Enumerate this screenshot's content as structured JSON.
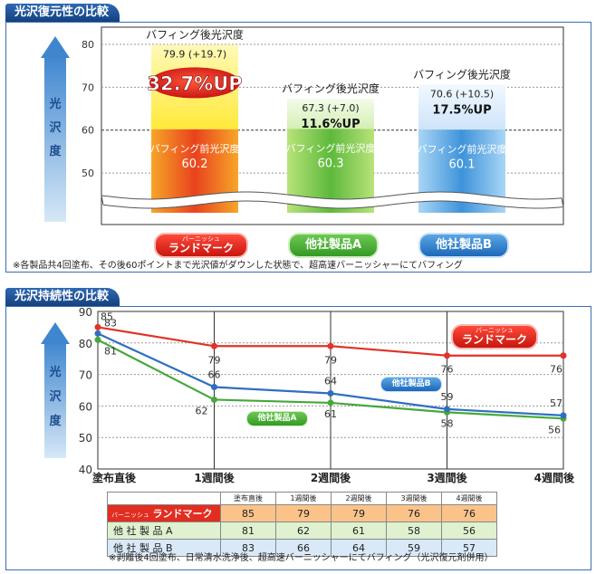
{
  "top": {
    "section_title": "光沢復元性の比較",
    "ylabel": [
      "光",
      "沢",
      "度"
    ],
    "note": "※各製品共4回塗布、その後60ポイントまで光沢値がダウンした状態で、超高速バーニッシャーにてバフィング",
    "after_label": "バフィング後光沢度",
    "before_label": "バフィング前光沢度",
    "products": [
      {
        "label": "ランドマーク",
        "sub_label": "バーニッシュ",
        "before": "60.2",
        "after": "79.9 (+19.7)",
        "up": "32.7%UP",
        "color": "#e8312a"
      },
      {
        "label": "他社製品A",
        "sub_label": "",
        "before": "60.3",
        "after": "67.3 (+7.0)",
        "up": "11.6%UP",
        "color": "#4caf3e"
      },
      {
        "label": "他社製品B",
        "sub_label": "",
        "before": "60.1",
        "after": "70.6 (+10.5)",
        "up": "17.5%UP",
        "color": "#3f8fd6"
      }
    ],
    "chart_data": {
      "type": "bar",
      "title": "光沢復元性の比較",
      "ylabel": "光沢度",
      "categories": [
        "ランドマーク",
        "他社製品A",
        "他社製品B"
      ],
      "series": [
        {
          "name": "バフィング前光沢度",
          "values": [
            60.2,
            60.3,
            60.1
          ]
        },
        {
          "name": "バフィング後光沢度",
          "values": [
            79.9,
            67.3,
            70.6
          ]
        }
      ],
      "ylim": [
        40,
        80
      ],
      "yticks": [
        50,
        60,
        70,
        80
      ]
    }
  },
  "bottom": {
    "section_title": "光沢持続性の比較",
    "ylabel": [
      "光",
      "沢",
      "度"
    ],
    "note": "※剥離後4回塗布、日常清水洗浄後、超高速バーニッシャーにてバフィング（光沢復元剤併用）",
    "legend_landmark_sub": "バーニッシュ",
    "legend_landmark": "ランドマーク",
    "legend_a": "他社製品A",
    "legend_b": "他社製品B",
    "table": {
      "headers": [
        "塗布直後",
        "1週間後",
        "2週間後",
        "3週間後",
        "4週間後"
      ],
      "rows": [
        {
          "sub": "バーニッシュ",
          "label": "ランドマーク",
          "values": [
            "85",
            "79",
            "79",
            "76",
            "76"
          ]
        },
        {
          "sub": "",
          "label": "他 社 製 品 A",
          "values": [
            "81",
            "62",
            "61",
            "58",
            "56"
          ]
        },
        {
          "sub": "",
          "label": "他 社 製 品 B",
          "values": [
            "83",
            "66",
            "64",
            "59",
            "57"
          ]
        }
      ]
    },
    "chart_data": {
      "type": "line",
      "title": "光沢持続性の比較",
      "ylabel": "光沢度",
      "categories": [
        "塗布直後",
        "1週間後",
        "2週間後",
        "3週間後",
        "4週間後"
      ],
      "series": [
        {
          "name": "ランドマーク",
          "values": [
            85,
            79,
            79,
            76,
            76
          ],
          "color": "#e0332b"
        },
        {
          "name": "他社製品A",
          "values": [
            81,
            62,
            61,
            58,
            56
          ],
          "color": "#46a83a"
        },
        {
          "name": "他社製品B",
          "values": [
            83,
            66,
            64,
            59,
            57
          ],
          "color": "#2f6fc0"
        }
      ],
      "ylim": [
        40,
        90
      ],
      "yticks": [
        40,
        50,
        60,
        70,
        80,
        90
      ]
    }
  }
}
